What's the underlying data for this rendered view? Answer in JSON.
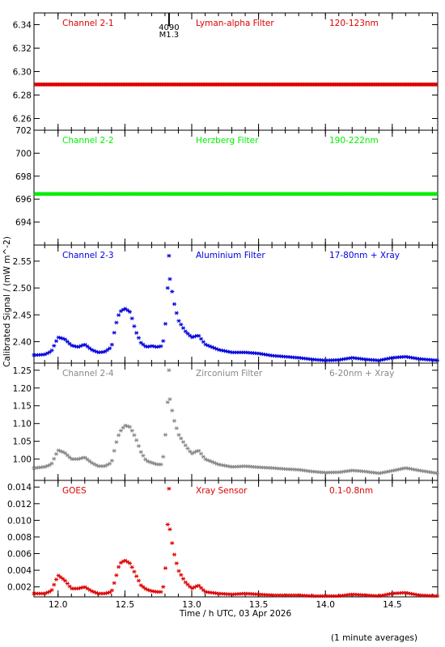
{
  "chart_data": {
    "type": "scatter",
    "shared_x": {
      "label": "Time / h UTC, 03 Apr 2026",
      "range": [
        11.82,
        14.84
      ],
      "ticks": [
        12.0,
        12.5,
        13.0,
        13.5,
        14.0,
        14.5
      ],
      "tick_labels": [
        "12.0",
        "12.5",
        "13.0",
        "13.5",
        "14.0",
        "14.5"
      ]
    },
    "ylabel": "Calibrated Signal / (mW m^-2)",
    "footnote": "(1 minute averages)",
    "panels": [
      {
        "name": "Channel 2-1",
        "filter": "Lyman-alpha Filter",
        "band": "120-123nm",
        "color": "#dd0000",
        "yrange": [
          6.25,
          6.35
        ],
        "yticks": [
          6.26,
          6.28,
          6.3,
          6.32,
          6.34
        ],
        "ytick_labels": [
          "6.26",
          "6.28",
          "6.30",
          "6.32",
          "6.34"
        ],
        "marker_annotation": {
          "x": 12.83,
          "lines": [
            "4090",
            "M1.3"
          ]
        },
        "series_x": [
          11.85,
          14.84
        ],
        "series_y": [
          6.289,
          6.289
        ]
      },
      {
        "name": "Channel 2-2",
        "filter": "Herzberg Filter",
        "band": "190-222nm",
        "color": "#00ee00",
        "yrange": [
          692.0,
          702.0
        ],
        "yticks": [
          694,
          696,
          698,
          700,
          702
        ],
        "ytick_labels": [
          "694",
          "696",
          "698",
          "700",
          "702"
        ],
        "series_x": [
          11.85,
          14.84
        ],
        "series_y": [
          696.45,
          696.45
        ]
      },
      {
        "name": "Channel 2-3",
        "filter": "Aluminium Filter",
        "band": "17-80nm + Xray",
        "color": "#0000dd",
        "yrange": [
          2.36,
          2.58
        ],
        "yticks": [
          2.4,
          2.45,
          2.5,
          2.55
        ],
        "ytick_labels": [
          "2.40",
          "2.45",
          "2.50",
          "2.55"
        ],
        "outlier": {
          "x": 12.83,
          "y": 2.56
        },
        "series_x": [
          11.83,
          11.9,
          11.95,
          12.0,
          12.05,
          12.1,
          12.15,
          12.2,
          12.25,
          12.3,
          12.35,
          12.4,
          12.43,
          12.46,
          12.5,
          12.54,
          12.58,
          12.62,
          12.66,
          12.7,
          12.74,
          12.78,
          12.8,
          12.82,
          12.84,
          12.86,
          12.9,
          12.95,
          13.0,
          13.05,
          13.1,
          13.2,
          13.3,
          13.4,
          13.5,
          13.6,
          13.7,
          13.8,
          13.9,
          14.0,
          14.1,
          14.2,
          14.3,
          14.4,
          14.5,
          14.6,
          14.7,
          14.84
        ],
        "series_y": [
          2.375,
          2.376,
          2.382,
          2.408,
          2.405,
          2.393,
          2.39,
          2.395,
          2.385,
          2.38,
          2.381,
          2.39,
          2.43,
          2.455,
          2.462,
          2.455,
          2.42,
          2.398,
          2.39,
          2.392,
          2.39,
          2.392,
          2.42,
          2.5,
          2.52,
          2.48,
          2.44,
          2.42,
          2.408,
          2.412,
          2.395,
          2.385,
          2.38,
          2.38,
          2.378,
          2.374,
          2.372,
          2.37,
          2.367,
          2.365,
          2.366,
          2.37,
          2.367,
          2.365,
          2.37,
          2.372,
          2.368,
          2.365
        ]
      },
      {
        "name": "Channel 2-4",
        "filter": "Zirconium Filter",
        "band": "6-20nm + Xray",
        "color": "#888888",
        "yrange": [
          0.94,
          1.27
        ],
        "yticks": [
          1.0,
          1.05,
          1.1,
          1.15,
          1.2,
          1.25
        ],
        "ytick_labels": [
          "1.00",
          "1.05",
          "1.10",
          "1.15",
          "1.20",
          "1.25"
        ],
        "outlier": {
          "x": 12.83,
          "y": 1.25
        },
        "series_x": [
          11.83,
          11.9,
          11.95,
          12.0,
          12.05,
          12.1,
          12.15,
          12.2,
          12.25,
          12.3,
          12.35,
          12.4,
          12.43,
          12.46,
          12.5,
          12.54,
          12.58,
          12.62,
          12.66,
          12.7,
          12.74,
          12.78,
          12.8,
          12.82,
          12.84,
          12.86,
          12.9,
          12.95,
          13.0,
          13.05,
          13.1,
          13.2,
          13.3,
          13.4,
          13.5,
          13.6,
          13.7,
          13.8,
          13.9,
          14.0,
          14.1,
          14.2,
          14.3,
          14.4,
          14.5,
          14.6,
          14.7,
          14.84
        ],
        "series_y": [
          0.975,
          0.978,
          0.985,
          1.025,
          1.018,
          1.0,
          1.0,
          1.005,
          0.99,
          0.98,
          0.98,
          0.99,
          1.04,
          1.075,
          1.095,
          1.09,
          1.06,
          1.02,
          0.995,
          0.99,
          0.985,
          0.985,
          1.05,
          1.16,
          1.17,
          1.12,
          1.07,
          1.04,
          1.015,
          1.025,
          1.0,
          0.985,
          0.978,
          0.98,
          0.977,
          0.975,
          0.972,
          0.97,
          0.965,
          0.962,
          0.963,
          0.968,
          0.965,
          0.96,
          0.967,
          0.975,
          0.968,
          0.96
        ]
      },
      {
        "name": "GOES",
        "filter": "Xray Sensor",
        "band": "0.1-0.8nm",
        "color": "#dd0000",
        "yrange": [
          0.0008,
          0.0148
        ],
        "yticks": [
          0.002,
          0.004,
          0.006,
          0.008,
          0.01,
          0.012,
          0.014
        ],
        "ytick_labels": [
          "0.002",
          "0.004",
          "0.006",
          "0.008",
          "0.010",
          "0.012",
          "0.014"
        ],
        "outlier": {
          "x": 12.83,
          "y": 0.0138
        },
        "series_x": [
          11.83,
          11.9,
          11.95,
          12.0,
          12.05,
          12.1,
          12.15,
          12.2,
          12.25,
          12.3,
          12.35,
          12.4,
          12.43,
          12.46,
          12.5,
          12.54,
          12.58,
          12.62,
          12.66,
          12.7,
          12.74,
          12.78,
          12.8,
          12.82,
          12.84,
          12.86,
          12.9,
          12.95,
          13.0,
          13.05,
          13.1,
          13.2,
          13.3,
          13.4,
          13.5,
          13.6,
          13.7,
          13.8,
          13.9,
          14.0,
          14.1,
          14.2,
          14.3,
          14.4,
          14.5,
          14.6,
          14.7,
          14.84
        ],
        "series_y": [
          0.0012,
          0.0012,
          0.0015,
          0.0034,
          0.0028,
          0.0018,
          0.0018,
          0.002,
          0.0015,
          0.0012,
          0.0012,
          0.0014,
          0.003,
          0.0048,
          0.0052,
          0.0048,
          0.0035,
          0.0022,
          0.0017,
          0.0015,
          0.0014,
          0.0014,
          0.0032,
          0.0095,
          0.0088,
          0.0065,
          0.004,
          0.0026,
          0.0018,
          0.0022,
          0.0014,
          0.0012,
          0.0011,
          0.0012,
          0.0011,
          0.001,
          0.001,
          0.001,
          0.0009,
          0.0009,
          0.0009,
          0.0011,
          0.001,
          0.0009,
          0.0012,
          0.0013,
          0.001,
          0.0009
        ]
      }
    ]
  }
}
